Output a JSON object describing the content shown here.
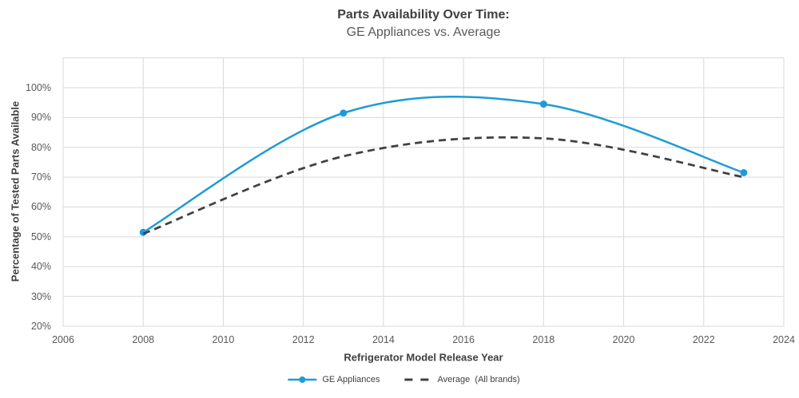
{
  "title": {
    "line1": "Parts Availability Over Time:",
    "line2": "GE Appliances vs. Average"
  },
  "axes": {
    "x_label": "Refrigerator Model Release Year",
    "y_label": "Percentage of Tested Parts Available",
    "x_ticks": [
      "2006",
      "2008",
      "2010",
      "2012",
      "2014",
      "2016",
      "2018",
      "2020",
      "2022",
      "2024"
    ],
    "y_ticks": [
      "20%",
      "30%",
      "40%",
      "50%",
      "60%",
      "70%",
      "80%",
      "90%",
      "100%"
    ]
  },
  "legend": [
    {
      "label": "GE Appliances",
      "type": "line-marker",
      "color": "#1e9bd7"
    },
    {
      "label": "Average  (All brands)",
      "type": "dashed",
      "color": "#404040"
    }
  ],
  "colors": {
    "ge_blue": "#1e9bd7",
    "average_gray": "#404040",
    "gridline": "#d9d9d9",
    "tick_text": "#595959",
    "title_text": "#3f3f3f"
  },
  "chart_data": {
    "type": "line",
    "title": "Parts Availability Over Time: GE Appliances vs. Average",
    "xlabel": "Refrigerator Model Release Year",
    "ylabel": "Percentage of Tested Parts Available",
    "x": [
      2008,
      2013,
      2018,
      2023
    ],
    "series": [
      {
        "name": "GE Appliances",
        "values": [
          51.5,
          91.5,
          94.5,
          71.5
        ],
        "color": "#1e9bd7",
        "style": "solid",
        "markers": true
      },
      {
        "name": "Average (All brands)",
        "values": [
          51,
          77,
          83,
          70
        ],
        "color": "#404040",
        "style": "dashed",
        "markers": false
      }
    ],
    "xlim": [
      2006,
      2024
    ],
    "ylim": [
      20,
      110
    ],
    "x_tick_step": 2,
    "y_tick_step": 10,
    "y_tick_format": "percent",
    "grid": true,
    "curve": "smooth",
    "legend_position": "bottom"
  }
}
